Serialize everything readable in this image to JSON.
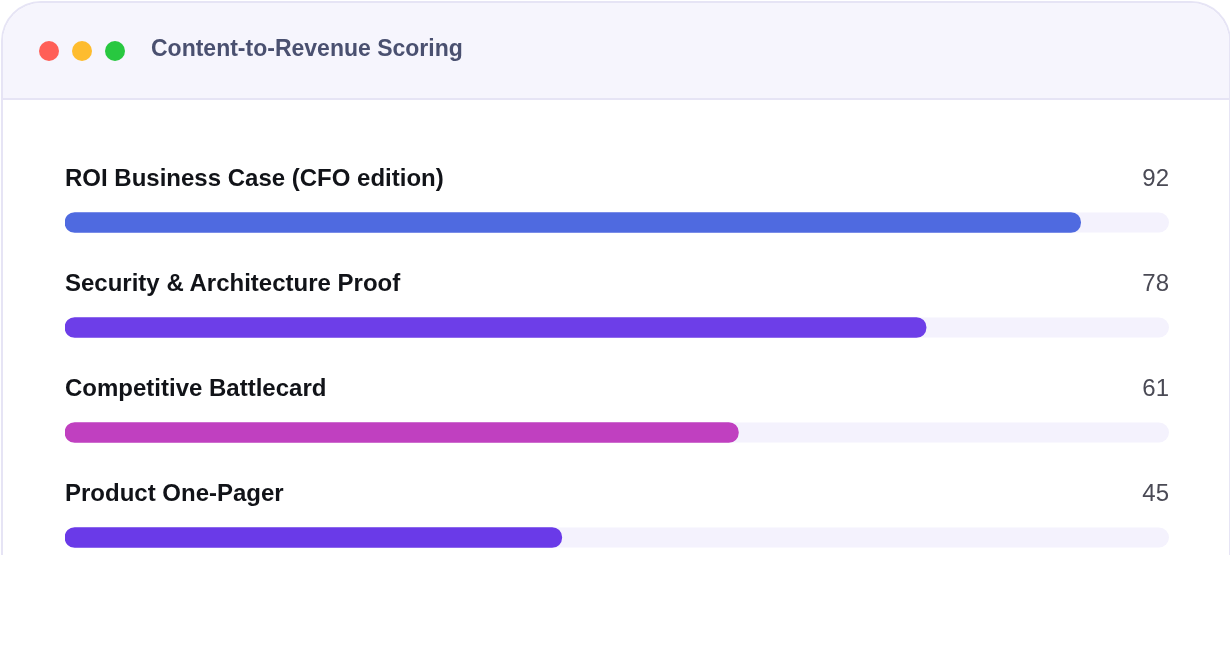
{
  "chart_data": {
    "type": "bar",
    "orientation": "horizontal",
    "title": "Content-to-Revenue Scoring",
    "categories": [
      "ROI Business Case (CFO edition)",
      "Security & Architecture Proof",
      "Competitive Battlecard",
      "Product One-Pager"
    ],
    "values": [
      92,
      78,
      61,
      45
    ],
    "colors": [
      "#4f6ae0",
      "#6d3ee8",
      "#c040c0",
      "#6a3ae8"
    ],
    "xlim": [
      0,
      100
    ],
    "tick_labels": false,
    "data_labels": true,
    "grid": false,
    "legend": false
  }
}
